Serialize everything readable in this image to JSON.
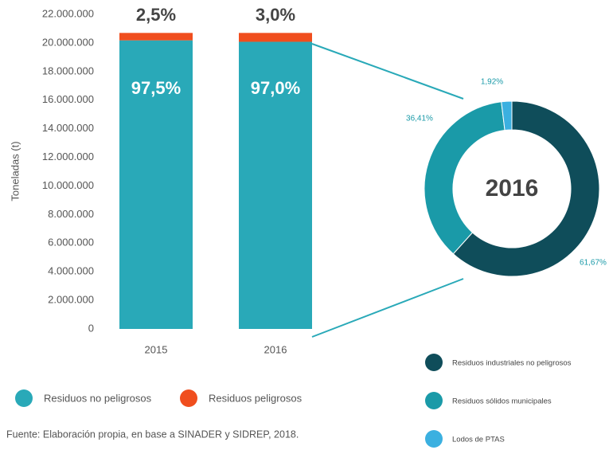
{
  "chart_data": [
    {
      "type": "bar",
      "stacked": true,
      "y_label": "Toneladas (t)",
      "categories": [
        "2015",
        "2016"
      ],
      "series": [
        {
          "name": "Residuos no peligrosos",
          "color": "#29a9b8",
          "values": [
            20180000,
            20080000
          ],
          "share_labels": [
            "97,5%",
            "97,0%"
          ]
        },
        {
          "name": "Residuos peligrosos",
          "color": "#f04e1e",
          "values": [
            520000,
            620000
          ],
          "share_labels": [
            "2,5%",
            "3,0%"
          ]
        }
      ],
      "ylim": [
        0,
        22000000
      ],
      "yticks": [
        0,
        {
          "value": 2000000,
          "label": "2.000.000"
        },
        {
          "value": 4000000,
          "label": "4.000.000"
        },
        {
          "value": 6000000,
          "label": "6.000.000"
        },
        {
          "value": 8000000,
          "label": "8.000.000"
        },
        {
          "value": 10000000,
          "label": "10.000.000"
        },
        {
          "value": 12000000,
          "label": "12.000.000"
        },
        {
          "value": 14000000,
          "label": "14.000.000"
        },
        {
          "value": 16000000,
          "label": "16.000.000"
        },
        {
          "value": 18000000,
          "label": "18.000.000"
        },
        {
          "value": 20000000,
          "label": "20.000.000"
        },
        {
          "value": 22000000,
          "label": "22.000.000"
        }
      ],
      "grid": false
    },
    {
      "type": "pie",
      "donut": true,
      "center_label": "2016",
      "categories": [
        "Residuos industriales no peligrosos",
        "Residuos sólidos municipales",
        "Lodos de PTAS"
      ],
      "values": [
        61.67,
        36.41,
        1.92
      ],
      "value_labels": [
        "61,67%",
        "36,41%",
        "1,92%"
      ],
      "colors": [
        "#0f4d5a",
        "#1a9aa8",
        "#3bb0e0"
      ]
    }
  ],
  "source": "Fuente: Elaboración propia, en base a SINADER y SIDREP, 2018."
}
